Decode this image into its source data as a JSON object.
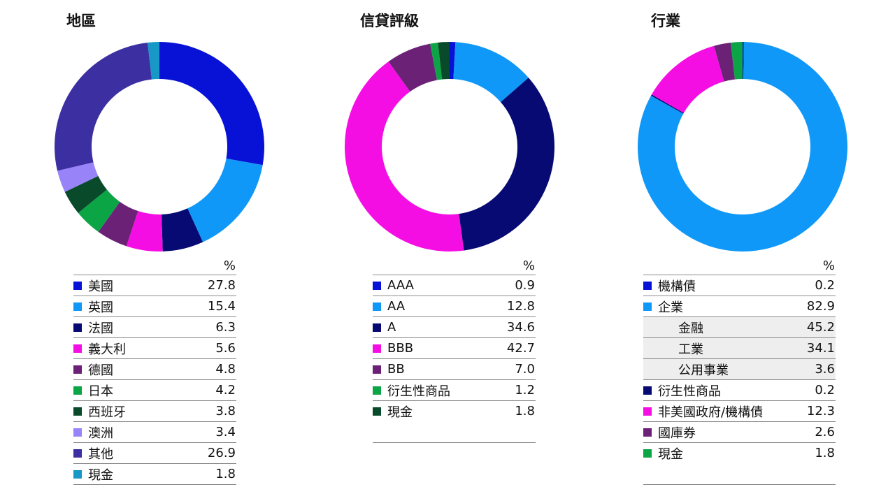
{
  "chart_data": [
    {
      "type": "pie",
      "title": "地區",
      "unit_header": "%",
      "slices": [
        {
          "label": "美國",
          "value": 27.8,
          "display": "27.8",
          "color": "#0712d6"
        },
        {
          "label": "英國",
          "value": 15.4,
          "display": "15.4",
          "color": "#0f98f8"
        },
        {
          "label": "法國",
          "value": 6.3,
          "display": "6.3",
          "color": "#060a72"
        },
        {
          "label": "義大利",
          "value": 5.6,
          "display": "5.6",
          "color": "#f50ee3"
        },
        {
          "label": "德國",
          "value": 4.8,
          "display": "4.8",
          "color": "#6b2176"
        },
        {
          "label": "日本",
          "value": 4.2,
          "display": "4.2",
          "color": "#0ca545"
        },
        {
          "label": "西班牙",
          "value": 3.8,
          "display": "3.8",
          "color": "#094a2b"
        },
        {
          "label": "澳洲",
          "value": 3.4,
          "display": "3.4",
          "color": "#9983f9"
        },
        {
          "label": "其他",
          "value": 26.9,
          "display": "26.9",
          "color": "#3b2fa1"
        },
        {
          "label": "現金",
          "value": 1.8,
          "display": "1.8",
          "color": "#1798c7"
        }
      ]
    },
    {
      "type": "pie",
      "title": "信貸評級",
      "unit_header": "%",
      "slices": [
        {
          "label": "AAA",
          "value": 0.9,
          "display": "0.9",
          "color": "#0712d6"
        },
        {
          "label": "AA",
          "value": 12.8,
          "display": "12.8",
          "color": "#0f98f8"
        },
        {
          "label": "A",
          "value": 34.6,
          "display": "34.6",
          "color": "#060a72"
        },
        {
          "label": "BBB",
          "value": 42.7,
          "display": "42.7",
          "color": "#f50ee3"
        },
        {
          "label": "BB",
          "value": 7.0,
          "display": "7.0",
          "color": "#6b2176"
        },
        {
          "label": "衍生性商品",
          "value": 1.2,
          "display": "1.2",
          "color": "#0ca545"
        },
        {
          "label": "現金",
          "value": 1.8,
          "display": "1.8",
          "color": "#094a2b"
        }
      ]
    },
    {
      "type": "pie",
      "title": "行業",
      "unit_header": "%",
      "slices": [
        {
          "label": "機構債",
          "value": 0.2,
          "display": "0.2",
          "color": "#0712d6"
        },
        {
          "label": "企業",
          "value": 82.9,
          "display": "82.9",
          "color": "#0f98f8",
          "subitems": [
            {
              "label": "金融",
              "display": "45.2"
            },
            {
              "label": "工業",
              "display": "34.1"
            },
            {
              "label": "公用事業",
              "display": "3.6"
            }
          ]
        },
        {
          "label": "衍生性商品",
          "value": 0.2,
          "display": "0.2",
          "color": "#060a72"
        },
        {
          "label": "非美國政府/機構債",
          "value": 12.3,
          "display": "12.3",
          "color": "#f50ee3"
        },
        {
          "label": "國庫券",
          "value": 2.6,
          "display": "2.6",
          "color": "#6b2176"
        },
        {
          "label": "現金",
          "value": 1.8,
          "display": "1.8",
          "color": "#0ca545"
        }
      ]
    }
  ]
}
